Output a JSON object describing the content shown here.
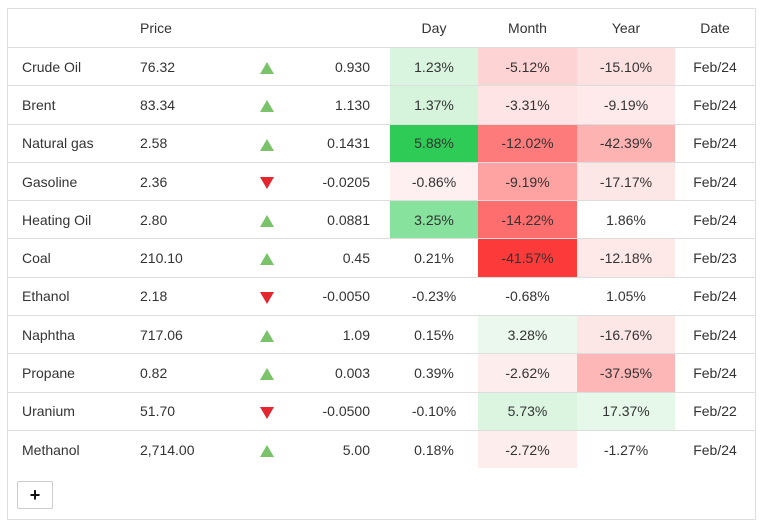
{
  "headers": {
    "name": "",
    "price": "Price",
    "arrow": "",
    "change": "",
    "day": "Day",
    "month": "Month",
    "year": "Year",
    "date": "Date"
  },
  "rows": [
    {
      "name": "Crude Oil",
      "price": "76.32",
      "direction": "up",
      "change": "0.930",
      "day": "1.23%",
      "month": "-5.12%",
      "year": "-15.10%",
      "date": "Feb/24",
      "day_bg": "#d9f5df",
      "month_bg": "#fdd3d3",
      "year_bg": "#fde0e0"
    },
    {
      "name": "Brent",
      "price": "83.34",
      "direction": "up",
      "change": "1.130",
      "day": "1.37%",
      "month": "-3.31%",
      "year": "-9.19%",
      "date": "Feb/24",
      "day_bg": "#d6f4dc",
      "month_bg": "#fee4e4",
      "year_bg": "#feeaea"
    },
    {
      "name": "Natural gas",
      "price": "2.58",
      "direction": "up",
      "change": "0.1431",
      "day": "5.88%",
      "month": "-12.02%",
      "year": "-42.39%",
      "date": "Feb/24",
      "day_bg": "#2ecc57",
      "month_bg": "#fe7b7b",
      "year_bg": "#feb3b3"
    },
    {
      "name": "Gasoline",
      "price": "2.36",
      "direction": "down",
      "change": "-0.0205",
      "day": "-0.86%",
      "month": "-9.19%",
      "year": "-17.17%",
      "date": "Feb/24",
      "day_bg": "#fef0f0",
      "month_bg": "#fea2a2",
      "year_bg": "#fde6e6"
    },
    {
      "name": "Heating Oil",
      "price": "2.80",
      "direction": "up",
      "change": "0.0881",
      "day": "3.25%",
      "month": "-14.22%",
      "year": "1.86%",
      "date": "Feb/24",
      "day_bg": "#86e29c",
      "month_bg": "#fe6e6e",
      "year_bg": "#ffffff"
    },
    {
      "name": "Coal",
      "price": "210.10",
      "direction": "up",
      "change": "0.45",
      "day": "0.21%",
      "month": "-41.57%",
      "year": "-12.18%",
      "date": "Feb/23",
      "day_bg": "#ffffff",
      "month_bg": "#fc3a3a",
      "year_bg": "#fee8e8"
    },
    {
      "name": "Ethanol",
      "price": "2.18",
      "direction": "down",
      "change": "-0.0050",
      "day": "-0.23%",
      "month": "-0.68%",
      "year": "1.05%",
      "date": "Feb/24",
      "day_bg": "#ffffff",
      "month_bg": "#ffffff",
      "year_bg": "#ffffff"
    },
    {
      "name": "Naphtha",
      "price": "717.06",
      "direction": "up",
      "change": "1.09",
      "day": "0.15%",
      "month": "3.28%",
      "year": "-16.76%",
      "date": "Feb/24",
      "day_bg": "#ffffff",
      "month_bg": "#eaf8ed",
      "year_bg": "#fde6e6"
    },
    {
      "name": "Propane",
      "price": "0.82",
      "direction": "up",
      "change": "0.003",
      "day": "0.39%",
      "month": "-2.62%",
      "year": "-37.95%",
      "date": "Feb/24",
      "day_bg": "#ffffff",
      "month_bg": "#feeded",
      "year_bg": "#feb7b7"
    },
    {
      "name": "Uranium",
      "price": "51.70",
      "direction": "down",
      "change": "-0.0500",
      "day": "-0.10%",
      "month": "5.73%",
      "year": "17.37%",
      "date": "Feb/22",
      "day_bg": "#ffffff",
      "month_bg": "#dbf5e1",
      "year_bg": "#e6f8ea"
    },
    {
      "name": "Methanol",
      "price": "2,714.00",
      "direction": "up",
      "change": "5.00",
      "day": "0.18%",
      "month": "-2.72%",
      "year": "-1.27%",
      "date": "Feb/24",
      "day_bg": "#ffffff",
      "month_bg": "#feeded",
      "year_bg": "#ffffff"
    }
  ],
  "footer": {
    "add_label": "+"
  }
}
